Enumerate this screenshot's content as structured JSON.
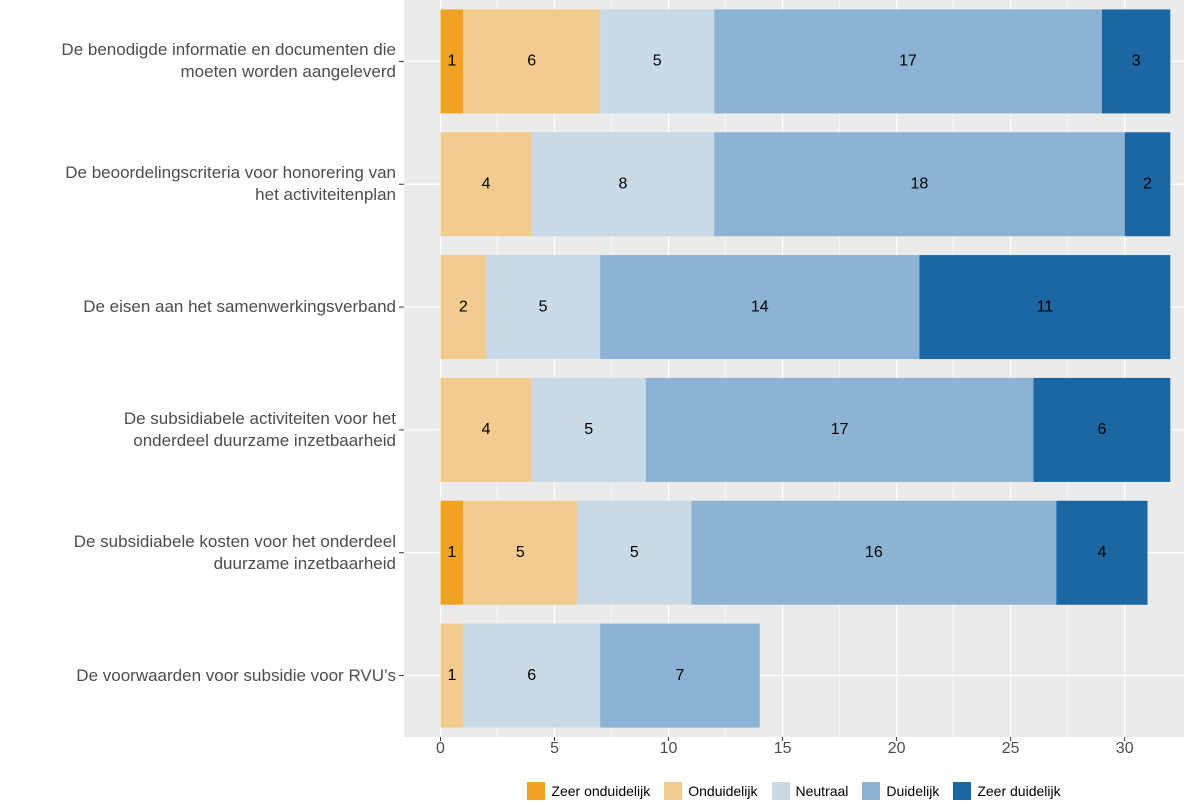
{
  "chart_data": {
    "type": "stacked-bar-horizontal",
    "categories": [
      "De benodigde informatie en documenten die\nmoeten worden aangeleverd",
      "De beoordelingscriteria voor honorering van\nhet activiteitenplan",
      "De eisen aan het samenwerkingsverband",
      "De subsidiabele activiteiten voor het\nonderdeel duurzame inzetbaarheid",
      "De subsidiabele kosten voor het onderdeel\nduurzame inzetbaarheid",
      "De voorwaarden voor subsidie voor RVU’s"
    ],
    "series": [
      {
        "name": "Zeer onduidelijk",
        "color": "#f0a323",
        "values": [
          1,
          0,
          0,
          0,
          1,
          0
        ]
      },
      {
        "name": "Onduidelijk",
        "color": "#f2cc8f",
        "values": [
          6,
          4,
          2,
          4,
          5,
          1
        ]
      },
      {
        "name": "Neutraal",
        "color": "#c9d9e6",
        "values": [
          5,
          8,
          5,
          5,
          5,
          6
        ]
      },
      {
        "name": "Duidelijk",
        "color": "#8db3d4",
        "values": [
          17,
          18,
          14,
          17,
          16,
          7
        ]
      },
      {
        "name": "Zeer duidelijk",
        "color": "#1a67a3",
        "values": [
          3,
          2,
          11,
          6,
          4,
          0
        ]
      }
    ],
    "xlim": [
      -1.6,
      32.6
    ],
    "xticks": [
      0,
      5,
      10,
      15,
      20,
      25,
      30
    ],
    "grid": true,
    "legend": "bottom"
  }
}
